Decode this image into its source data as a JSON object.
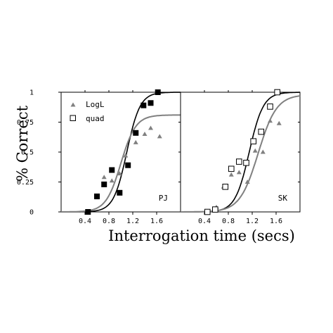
{
  "chart_data": {
    "type": "scatter",
    "ylabel": "% Correct",
    "xlabel": "Interrogation time (secs)",
    "ylim": [
      0,
      1
    ],
    "xlim": [
      0,
      2.0
    ],
    "y_ticks": [
      {
        "value": 0,
        "label": "0"
      },
      {
        "value": 0.25,
        "label": "0.25"
      },
      {
        "value": 0.5,
        "label": "0.5"
      },
      {
        "value": 0.75,
        "label": "0.75"
      },
      {
        "value": 1,
        "label": "1"
      }
    ],
    "x_ticks": [
      {
        "value": 0.4,
        "label": "0.4"
      },
      {
        "value": 0.8,
        "label": "0.8"
      },
      {
        "value": 1.2,
        "label": "1.2"
      },
      {
        "value": 1.6,
        "label": "1.6"
      }
    ],
    "legend": {
      "placement": "top-left",
      "entries": [
        {
          "label": "LogL",
          "marker": "triangle",
          "color": "#808080"
        },
        {
          "label": "quad",
          "marker": "open-square",
          "color": "#000000"
        }
      ]
    },
    "colors": {
      "logl": "#808080",
      "quad": "#000000",
      "fit_black": "#000000",
      "fit_gray": "#808080"
    },
    "panels": [
      {
        "label": "PJ",
        "quad_marker": "filled-square",
        "series": [
          {
            "name": "LogL",
            "x": [
              0.6,
              0.72,
              0.85,
              0.98,
              1.08,
              1.25,
              1.4,
              1.5,
              1.65
            ],
            "y": [
              0.12,
              0.29,
              0.26,
              0.32,
              0.47,
              0.58,
              0.65,
              0.7,
              0.63
            ]
          },
          {
            "name": "quad",
            "x": [
              0.45,
              0.6,
              0.72,
              0.85,
              0.98,
              1.12,
              1.25,
              1.38,
              1.5,
              1.62
            ],
            "y": [
              0.0,
              0.13,
              0.23,
              0.35,
              0.16,
              0.39,
              0.66,
              0.89,
              0.91,
              1.0
            ]
          }
        ],
        "fits": [
          {
            "name": "quad",
            "style": "black",
            "x50": 1.1,
            "slope": 9.0,
            "upper": 1.0
          },
          {
            "name": "LogL",
            "style": "gray",
            "x50": 1.0,
            "slope": 8.0,
            "upper": 0.81
          }
        ]
      },
      {
        "label": "SK",
        "quad_marker": "open-square",
        "series": [
          {
            "name": "LogL",
            "x": [
              0.6,
              0.72,
              0.85,
              0.98,
              1.12,
              1.25,
              1.38,
              1.5,
              1.65
            ],
            "y": [
              0.04,
              0.21,
              0.31,
              0.33,
              0.25,
              0.51,
              0.5,
              0.76,
              0.74
            ]
          },
          {
            "name": "quad",
            "x": [
              0.45,
              0.58,
              0.75,
              0.85,
              0.98,
              1.1,
              1.22,
              1.35,
              1.5,
              1.62
            ],
            "y": [
              0.0,
              0.02,
              0.21,
              0.36,
              0.42,
              0.41,
              0.59,
              0.67,
              0.88,
              1.0
            ]
          }
        ],
        "fits": [
          {
            "name": "quad",
            "style": "black",
            "x50": 1.15,
            "slope": 8.5,
            "upper": 1.0
          },
          {
            "name": "LogL",
            "style": "gray",
            "x50": 1.3,
            "slope": 6.5,
            "upper": 0.98
          }
        ]
      }
    ]
  }
}
